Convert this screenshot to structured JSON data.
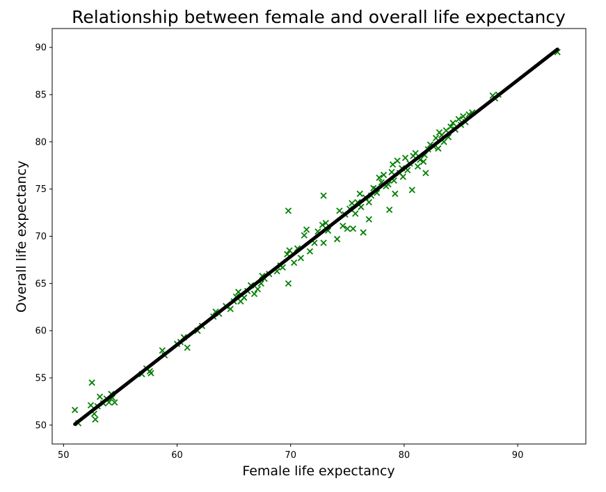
{
  "chart_data": {
    "type": "scatter",
    "title": "Relationship between female and overall life expectancy",
    "xlabel": "Female life expectancy",
    "ylabel": "Overall life expectancy",
    "xlim": [
      49,
      96
    ],
    "ylim": [
      48,
      92
    ],
    "xticks": [
      50,
      60,
      70,
      80,
      90
    ],
    "yticks": [
      50,
      55,
      60,
      65,
      70,
      75,
      80,
      85,
      90
    ],
    "grid": false,
    "legend": "none",
    "marker": "x",
    "marker_color": "#008000",
    "line_color": "#000000",
    "fit_line": {
      "x": [
        51.0,
        93.5
      ],
      "y": [
        50.1,
        89.8
      ]
    },
    "points": [
      [
        51.0,
        51.6
      ],
      [
        51.3,
        50.2
      ],
      [
        52.5,
        54.5
      ],
      [
        52.4,
        52.1
      ],
      [
        52.7,
        51.2
      ],
      [
        52.8,
        50.6
      ],
      [
        53.2,
        53.0
      ],
      [
        53.0,
        52.0
      ],
      [
        53.8,
        52.8
      ],
      [
        54.0,
        52.4
      ],
      [
        54.2,
        53.3
      ],
      [
        54.5,
        52.4
      ],
      [
        54.3,
        52.9
      ],
      [
        53.5,
        52.3
      ],
      [
        56.9,
        55.4
      ],
      [
        57.3,
        56.0
      ],
      [
        57.6,
        55.7
      ],
      [
        57.7,
        55.5
      ],
      [
        58.7,
        57.9
      ],
      [
        58.9,
        57.4
      ],
      [
        60.0,
        58.6
      ],
      [
        60.3,
        58.8
      ],
      [
        60.6,
        59.3
      ],
      [
        60.9,
        58.2
      ],
      [
        61.8,
        60.0
      ],
      [
        62.2,
        60.5
      ],
      [
        63.2,
        61.5
      ],
      [
        63.4,
        62.0
      ],
      [
        63.7,
        61.8
      ],
      [
        64.3,
        62.6
      ],
      [
        64.7,
        62.3
      ],
      [
        65.0,
        63.1
      ],
      [
        65.2,
        63.6
      ],
      [
        65.4,
        64.1
      ],
      [
        65.6,
        63.1
      ],
      [
        65.9,
        63.5
      ],
      [
        66.2,
        64.2
      ],
      [
        66.5,
        64.8
      ],
      [
        66.8,
        63.9
      ],
      [
        67.1,
        64.4
      ],
      [
        67.4,
        65.0
      ],
      [
        67.5,
        65.8
      ],
      [
        67.7,
        65.5
      ],
      [
        68.1,
        66.0
      ],
      [
        68.8,
        66.3
      ],
      [
        69.1,
        66.9
      ],
      [
        69.3,
        66.7
      ],
      [
        69.7,
        68.1
      ],
      [
        69.8,
        65.0
      ],
      [
        69.9,
        68.5
      ],
      [
        69.8,
        72.7
      ],
      [
        70.3,
        67.2
      ],
      [
        70.6,
        68.7
      ],
      [
        70.9,
        67.7
      ],
      [
        71.2,
        70.1
      ],
      [
        71.4,
        70.7
      ],
      [
        71.7,
        68.4
      ],
      [
        72.1,
        69.3
      ],
      [
        72.4,
        70.5
      ],
      [
        72.8,
        71.2
      ],
      [
        72.9,
        74.3
      ],
      [
        73.1,
        71.4
      ],
      [
        73.3,
        70.6
      ],
      [
        72.9,
        69.3
      ],
      [
        74.1,
        69.7
      ],
      [
        74.3,
        72.7
      ],
      [
        74.6,
        71.1
      ],
      [
        74.8,
        72.3
      ],
      [
        75.0,
        70.8
      ],
      [
        75.2,
        72.9
      ],
      [
        75.4,
        73.5
      ],
      [
        75.5,
        70.8
      ],
      [
        75.7,
        72.4
      ],
      [
        75.9,
        73.6
      ],
      [
        76.1,
        74.5
      ],
      [
        76.2,
        73.1
      ],
      [
        76.4,
        70.4
      ],
      [
        76.6,
        74.1
      ],
      [
        76.9,
        73.6
      ],
      [
        76.9,
        71.8
      ],
      [
        77.1,
        74.3
      ],
      [
        77.3,
        75.1
      ],
      [
        77.5,
        75.0
      ],
      [
        77.6,
        74.6
      ],
      [
        77.8,
        76.2
      ],
      [
        78.0,
        75.7
      ],
      [
        78.2,
        76.5
      ],
      [
        78.4,
        75.3
      ],
      [
        78.6,
        75.5
      ],
      [
        78.7,
        72.8
      ],
      [
        78.9,
        76.8
      ],
      [
        79.0,
        77.6
      ],
      [
        79.1,
        75.9
      ],
      [
        79.2,
        74.5
      ],
      [
        79.4,
        78.0
      ],
      [
        79.6,
        76.7
      ],
      [
        79.8,
        77.2
      ],
      [
        79.9,
        76.3
      ],
      [
        80.1,
        78.3
      ],
      [
        80.3,
        77.0
      ],
      [
        80.5,
        77.7
      ],
      [
        80.7,
        74.9
      ],
      [
        80.8,
        78.5
      ],
      [
        81.0,
        78.8
      ],
      [
        81.2,
        77.4
      ],
      [
        81.4,
        78.1
      ],
      [
        81.7,
        77.9
      ],
      [
        81.8,
        78.6
      ],
      [
        81.9,
        76.7
      ],
      [
        82.1,
        79.2
      ],
      [
        82.3,
        79.7
      ],
      [
        82.6,
        79.5
      ],
      [
        82.8,
        80.4
      ],
      [
        83.0,
        79.3
      ],
      [
        83.1,
        81.0
      ],
      [
        83.3,
        80.7
      ],
      [
        83.5,
        80.0
      ],
      [
        83.7,
        81.2
      ],
      [
        83.9,
        80.5
      ],
      [
        84.1,
        81.6
      ],
      [
        84.3,
        82.0
      ],
      [
        84.5,
        81.3
      ],
      [
        84.8,
        82.4
      ],
      [
        85.0,
        81.8
      ],
      [
        85.2,
        82.7
      ],
      [
        85.4,
        82.1
      ],
      [
        85.7,
        82.9
      ],
      [
        86.0,
        83.1
      ],
      [
        87.8,
        84.9
      ],
      [
        88.0,
        84.6
      ],
      [
        88.3,
        85.0
      ],
      [
        93.5,
        89.5
      ]
    ]
  }
}
